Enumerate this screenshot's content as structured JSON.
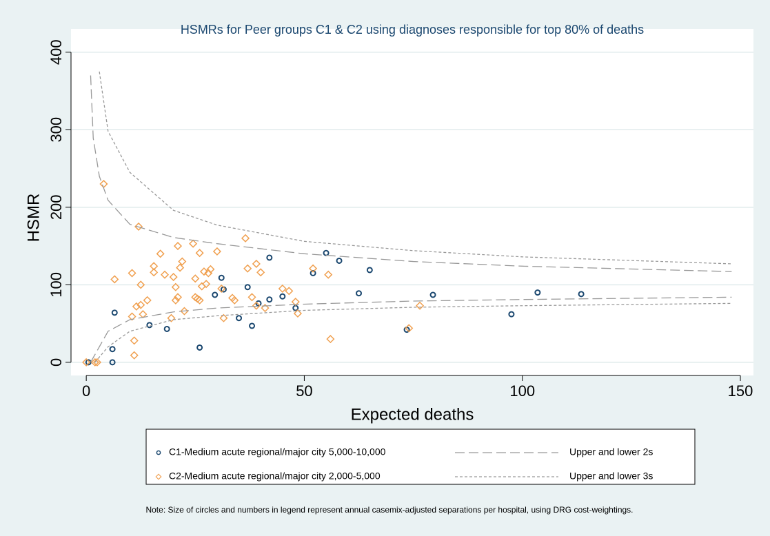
{
  "chart_data": {
    "type": "scatter",
    "title": "HSMRs for Peer groups C1 & C2 using diagnoses responsible for top 80% of deaths",
    "x_label": "Expected deaths",
    "y_label": "HSMR",
    "note": "Note: Size of circles and numbers in legend represent annual casemix-adjusted separations per hospital, using DRG cost-weightings.",
    "xlim": [
      -3.5,
      153
    ],
    "ylim": [
      -17,
      430
    ],
    "xticks": [
      0,
      50,
      100,
      150
    ],
    "yticks": [
      0,
      100,
      200,
      300,
      400
    ],
    "grid": true,
    "series": [
      {
        "name": "C1-Medium acute regional/major city 5,000-10,000",
        "marker": "circle",
        "color": "#1a476f",
        "x": [
          0.5,
          6,
          6,
          6.5,
          14.5,
          18.5,
          26,
          29.5,
          31,
          31.5,
          35,
          37,
          38,
          39.5,
          42,
          42,
          45,
          48,
          52,
          55,
          58,
          62.5,
          65,
          73.5,
          79.5,
          97.5,
          103.5,
          113.5
        ],
        "values": [
          0,
          17,
          0,
          64,
          48,
          43,
          19,
          87,
          109,
          94,
          57,
          97,
          47,
          76,
          81,
          135,
          85,
          70,
          115,
          141,
          131,
          89,
          119,
          42,
          87,
          62,
          90,
          88
        ]
      },
      {
        "name": "C2-Medium acute regional/major city 2,000-5,000",
        "marker": "diamond",
        "color": "#f0a050",
        "x": [
          0,
          2,
          2.5,
          4,
          6.5,
          10.5,
          10.5,
          11,
          11,
          11.5,
          12,
          12.5,
          12.5,
          13,
          14,
          15.5,
          15.5,
          17,
          18,
          20,
          20.5,
          20.5,
          21,
          21,
          21.5,
          22,
          22.5,
          19.5,
          24.5,
          25,
          25,
          25.5,
          26,
          26,
          26.5,
          27,
          27.5,
          28,
          28.5,
          30,
          31.5,
          31,
          33.5,
          34,
          36.5,
          37,
          38,
          39,
          39,
          40,
          41,
          45,
          46.5,
          48,
          48.5,
          52,
          55.5,
          56,
          74,
          76.5
        ],
        "values": [
          0,
          0,
          0,
          230,
          107,
          59,
          115,
          28,
          9,
          72,
          175,
          74,
          100,
          62,
          80,
          124,
          116,
          140,
          113,
          110,
          80,
          97,
          150,
          84,
          122,
          130,
          66,
          57,
          153,
          84,
          108,
          82,
          80,
          141,
          98,
          117,
          101,
          115,
          120,
          143,
          57,
          95,
          83,
          80,
          160,
          121,
          84,
          127,
          73,
          116,
          70,
          95,
          92,
          78,
          63,
          121,
          113,
          30,
          44,
          73
        ]
      },
      {
        "name": "Upper and lower 2s",
        "marker": "line",
        "dash": "14 6",
        "color": "#999999",
        "x": [
          1,
          1.6,
          3,
          5,
          10,
          20,
          30,
          50,
          75,
          100,
          148,
          null,
          1,
          5,
          10,
          20,
          30,
          50,
          75,
          100,
          148
        ],
        "values": [
          370,
          289,
          240,
          209,
          178,
          161,
          153,
          140,
          130,
          124,
          117,
          null,
          0,
          40,
          55,
          65,
          70,
          75,
          79,
          81,
          84
        ]
      },
      {
        "name": "Upper and lower 3s",
        "marker": "line",
        "dash": "4 3",
        "color": "#999999",
        "x": [
          3,
          5,
          10,
          20,
          30,
          50,
          75,
          100,
          148,
          null,
          2,
          5,
          10,
          20,
          30,
          50,
          75,
          100,
          148
        ],
        "values": [
          375,
          298,
          245,
          196,
          177,
          156,
          144,
          136,
          127,
          null,
          0,
          20,
          40,
          55,
          60,
          67,
          71,
          73,
          76
        ]
      }
    ]
  }
}
